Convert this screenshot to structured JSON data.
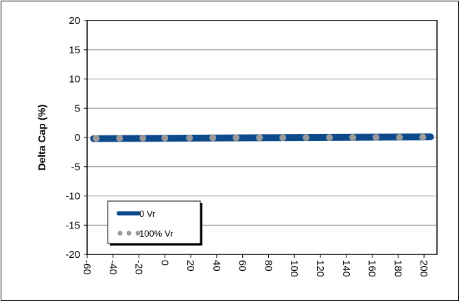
{
  "chart_data": {
    "type": "line",
    "xlabel": "",
    "ylabel": "Delta Cap (%)",
    "xlim": [
      -60,
      210
    ],
    "ylim": [
      -20,
      20
    ],
    "x_ticks": [
      "-60",
      "-40",
      "-20",
      "0",
      "20",
      "40",
      "60",
      "80",
      "100",
      "120",
      "140",
      "160",
      "180",
      "200"
    ],
    "y_ticks": [
      "20",
      "15",
      "10",
      "5",
      "0",
      "-5",
      "-10",
      "-15",
      "-20"
    ],
    "grid": "horizontal",
    "legend_position": "bottom-left",
    "series": [
      {
        "name": "0 Vr",
        "style": "solid-thick",
        "color": "#0d4a8c",
        "x": [
          -55,
          205
        ],
        "y": [
          -0.2,
          0.1
        ]
      },
      {
        "name": "100% Vr",
        "style": "dots",
        "color": "#9a9a9a",
        "x": [
          -53,
          -35,
          -17,
          0,
          19,
          37,
          55,
          73,
          91,
          109,
          127,
          145,
          163,
          181,
          199
        ],
        "y": [
          -0.15,
          -0.12,
          -0.1,
          -0.08,
          -0.06,
          -0.05,
          -0.04,
          -0.03,
          -0.02,
          -0.01,
          0.0,
          0.01,
          0.02,
          0.03,
          0.05
        ]
      }
    ]
  }
}
